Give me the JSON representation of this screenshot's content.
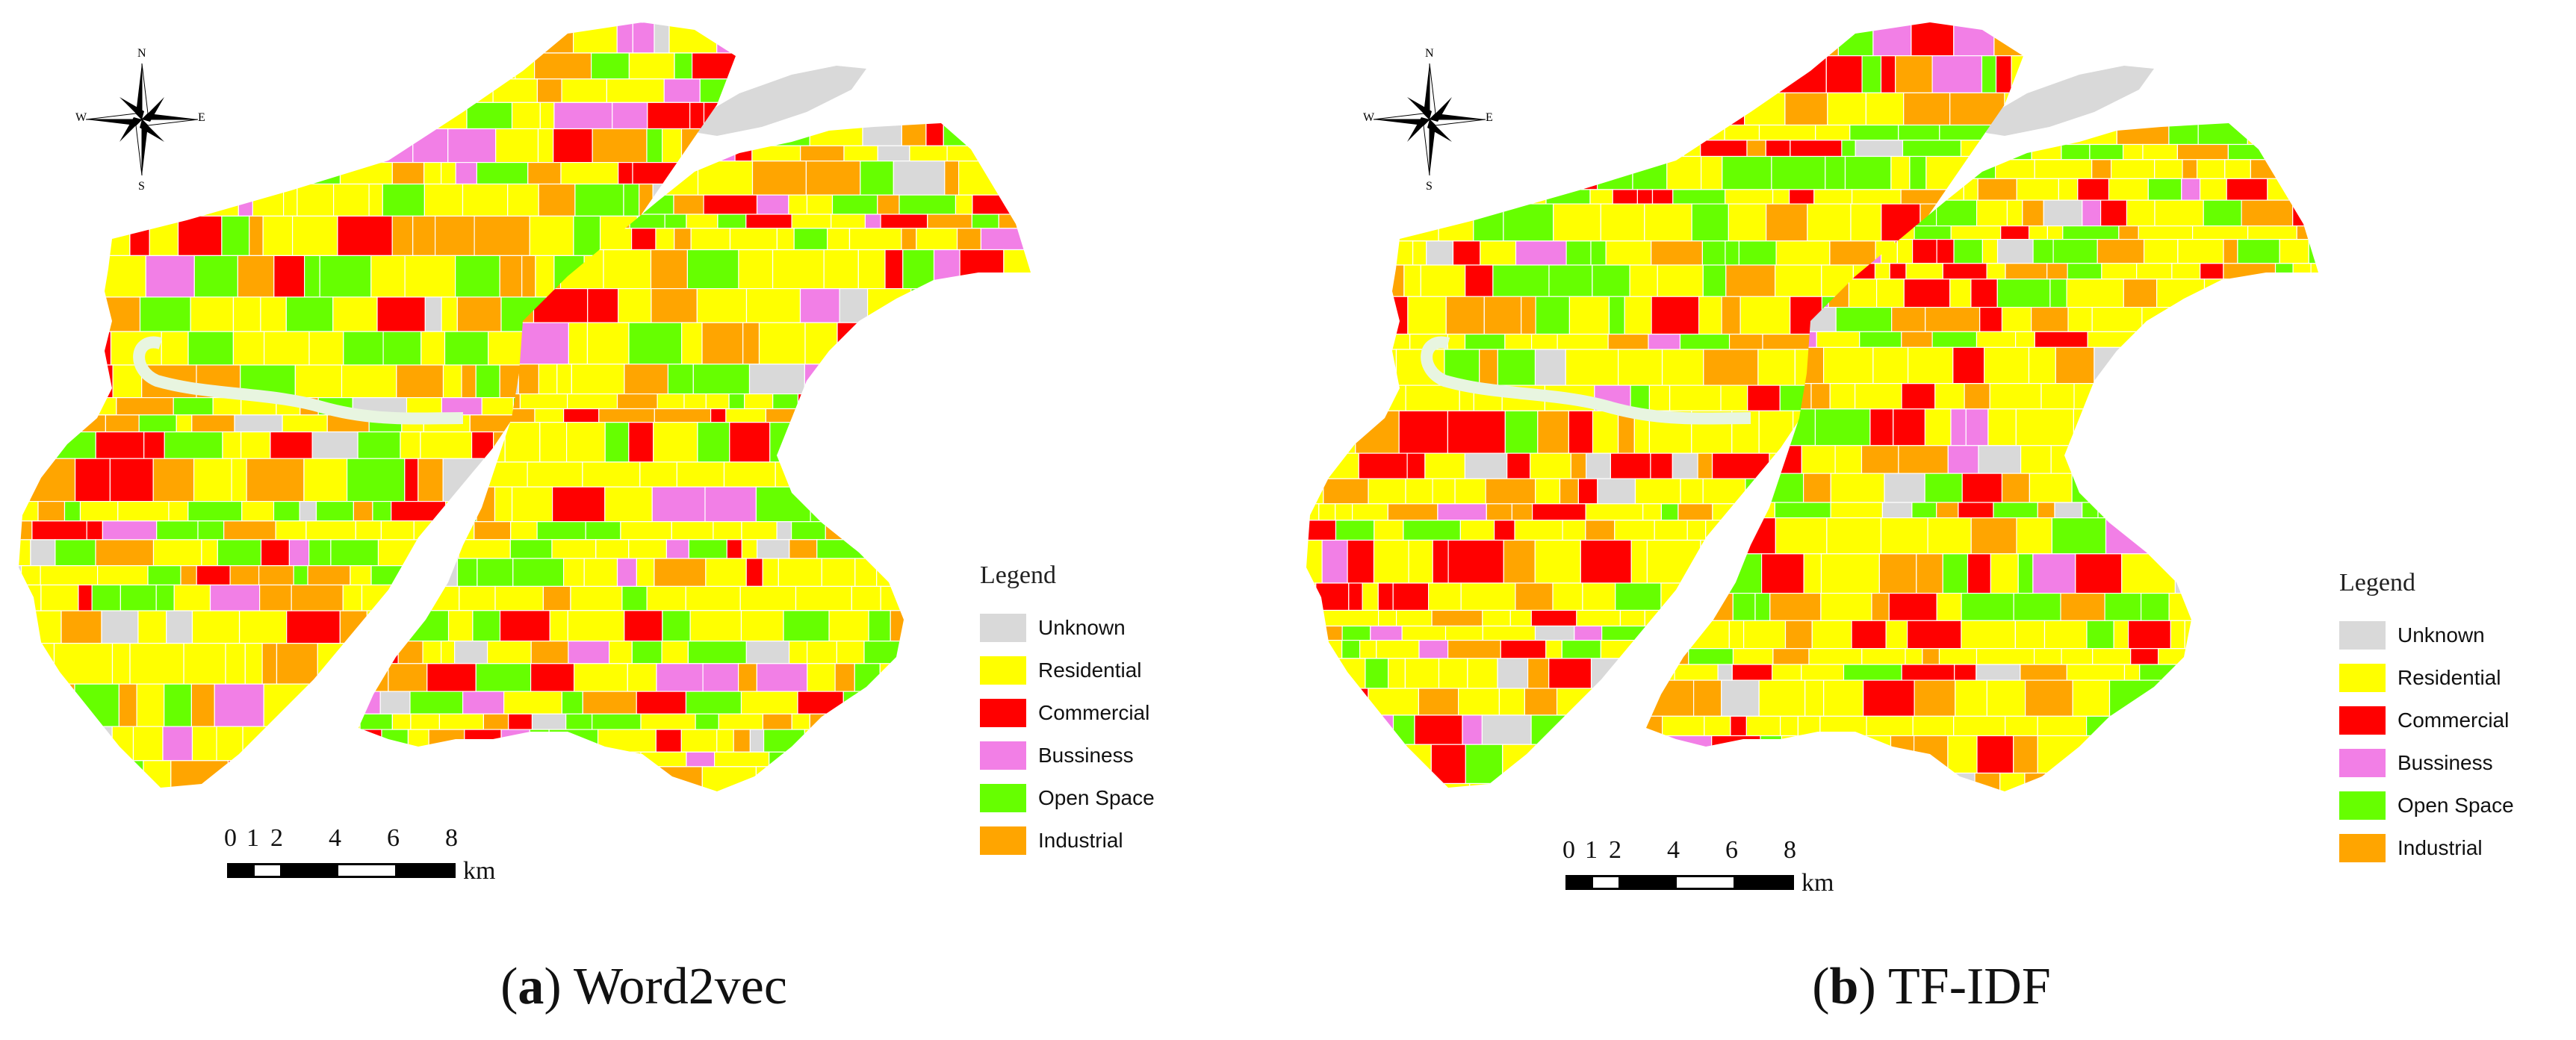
{
  "panels": [
    {
      "id": "a",
      "caption_letter": "a",
      "caption_text": "Word2vec",
      "legend_title": "Legend",
      "legend": [
        {
          "label": "Unknown",
          "color": "#d9d9d9"
        },
        {
          "label": "Residential",
          "color": "#ffff00"
        },
        {
          "label": "Commercial",
          "color": "#ff0000"
        },
        {
          "label": "Bussiness",
          "color": "#f27fe6"
        },
        {
          "label": "Open Space",
          "color": "#66ff00"
        },
        {
          "label": "Industrial",
          "color": "#ffa500"
        }
      ],
      "scale_ticks": [
        "0",
        "1",
        "2",
        "4",
        "6",
        "8"
      ],
      "scale_unit": "km",
      "compass": {
        "n": "N",
        "s": "S",
        "e": "E",
        "w": "W"
      },
      "seed": 7
    },
    {
      "id": "b",
      "caption_letter": "b",
      "caption_text": "TF-IDF",
      "legend_title": "Legend",
      "legend": [
        {
          "label": "Unknown",
          "color": "#d9d9d9"
        },
        {
          "label": "Residential",
          "color": "#ffff00"
        },
        {
          "label": "Commercial",
          "color": "#ff0000"
        },
        {
          "label": "Bussiness",
          "color": "#f27fe6"
        },
        {
          "label": "Open Space",
          "color": "#66ff00"
        },
        {
          "label": "Industrial",
          "color": "#ffa500"
        }
      ],
      "scale_ticks": [
        "0",
        "1",
        "2",
        "4",
        "6",
        "8"
      ],
      "scale_unit": "km",
      "compass": {
        "n": "N",
        "s": "S",
        "e": "E",
        "w": "W"
      },
      "seed": 23
    }
  ]
}
